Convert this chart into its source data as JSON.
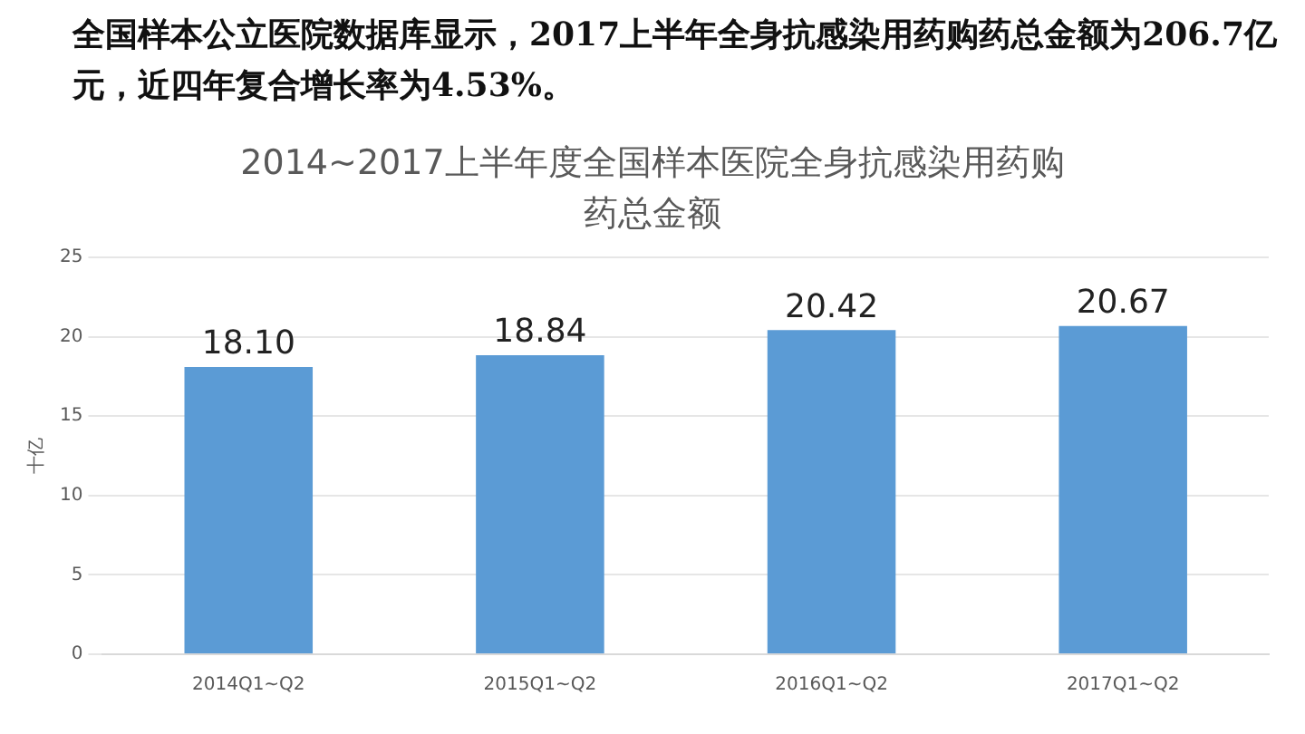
{
  "chart_data": {
    "type": "bar",
    "subtitle": "全国样本公立医院数据库显示，2017上半年全身抗感染用药购药总金额为206.7亿元，近四年复合增长率为4.53%。",
    "title": "2014~2017上半年度全国样本医院全身抗感染用药购药总金额",
    "ylabel": "十亿",
    "categories": [
      "2014Q1~Q2",
      "2015Q1~Q2",
      "2016Q1~Q2",
      "2017Q1~Q2"
    ],
    "values": [
      18.1,
      18.84,
      20.42,
      20.67
    ],
    "value_labels": [
      "18.10",
      "18.84",
      "20.42",
      "20.67"
    ],
    "color": "#5b9bd5",
    "ylim": [
      0,
      25
    ],
    "yticks": [
      0,
      5,
      10,
      15,
      20,
      25
    ],
    "grid": "y",
    "legend": false
  }
}
